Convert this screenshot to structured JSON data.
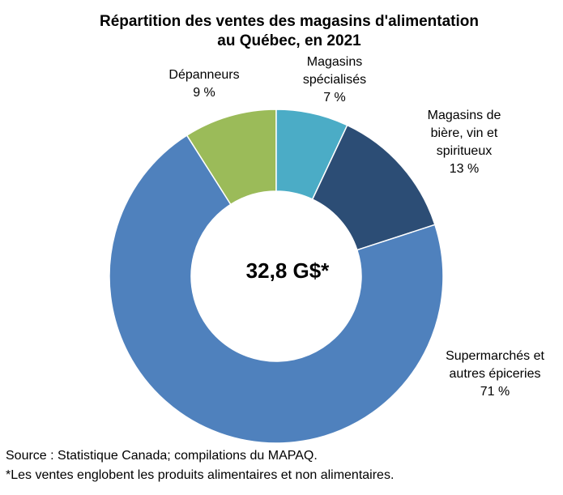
{
  "chart_data": {
    "type": "pie",
    "variant": "donut",
    "title_lines": [
      "Répartition des ventes des magasins d'alimentation",
      "au Québec, en 2021"
    ],
    "center_label": "32,8 G$*",
    "slices": [
      {
        "name": "Supermarchés et autres épiceries",
        "label_lines": [
          "Supermarchés et",
          "autres épiceries"
        ],
        "value": 71,
        "value_label": "71 %",
        "color": "#4F81BD"
      },
      {
        "name": "Dépanneurs",
        "label_lines": [
          "Dépanneurs"
        ],
        "value": 9,
        "value_label": "9 %",
        "color": "#9BBB59"
      },
      {
        "name": "Magasins spécialisés",
        "label_lines": [
          "Magasins",
          "spécialisés"
        ],
        "value": 7,
        "value_label": "7 %",
        "color": "#4BACC6"
      },
      {
        "name": "Magasins de bière, vin et spiritueux",
        "label_lines": [
          "Magasins de",
          "bière, vin et",
          "spiritueux"
        ],
        "value": 13,
        "value_label": "13 %",
        "color": "#2C4D75"
      }
    ],
    "legend": "none"
  },
  "footnotes": {
    "source": "Source : Statistique Canada; compilations du MAPAQ.",
    "note": "*Les ventes englobent les produits alimentaires et non alimentaires."
  }
}
